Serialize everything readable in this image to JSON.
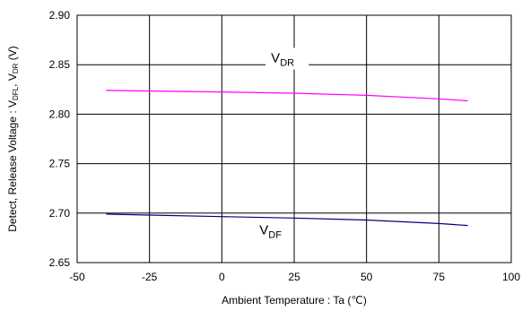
{
  "chart_data": {
    "type": "line",
    "title": "",
    "xlabel": "Ambient Temperature : Ta (℃)",
    "ylabel": {
      "main": "Detect, Release Voltage : V",
      "sub1": "DFL",
      "sep": ", V",
      "sub2": "DR",
      "unit": " (V)"
    },
    "xlim": [
      -50,
      100
    ],
    "ylim": [
      2.65,
      2.9
    ],
    "xticks": [
      "-50",
      "-25",
      "0",
      "25",
      "50",
      "75",
      "100"
    ],
    "yticks": [
      "2.65",
      "2.70",
      "2.75",
      "2.80",
      "2.85",
      "2.90"
    ],
    "grid": true,
    "series": [
      {
        "name": "V_DR",
        "label_main": "V",
        "label_sub": "DR",
        "color": "#ff00ff",
        "x": [
          -40,
          -25,
          0,
          25,
          50,
          75,
          85
        ],
        "y": [
          2.824,
          2.8235,
          2.8225,
          2.8212,
          2.819,
          2.8155,
          2.8135
        ]
      },
      {
        "name": "V_DF",
        "label_main": "V",
        "label_sub": "DF",
        "color": "#000080",
        "x": [
          -40,
          -25,
          0,
          25,
          50,
          75,
          85
        ],
        "y": [
          2.699,
          2.698,
          2.6965,
          2.695,
          2.693,
          2.6895,
          2.6875
        ]
      }
    ]
  }
}
